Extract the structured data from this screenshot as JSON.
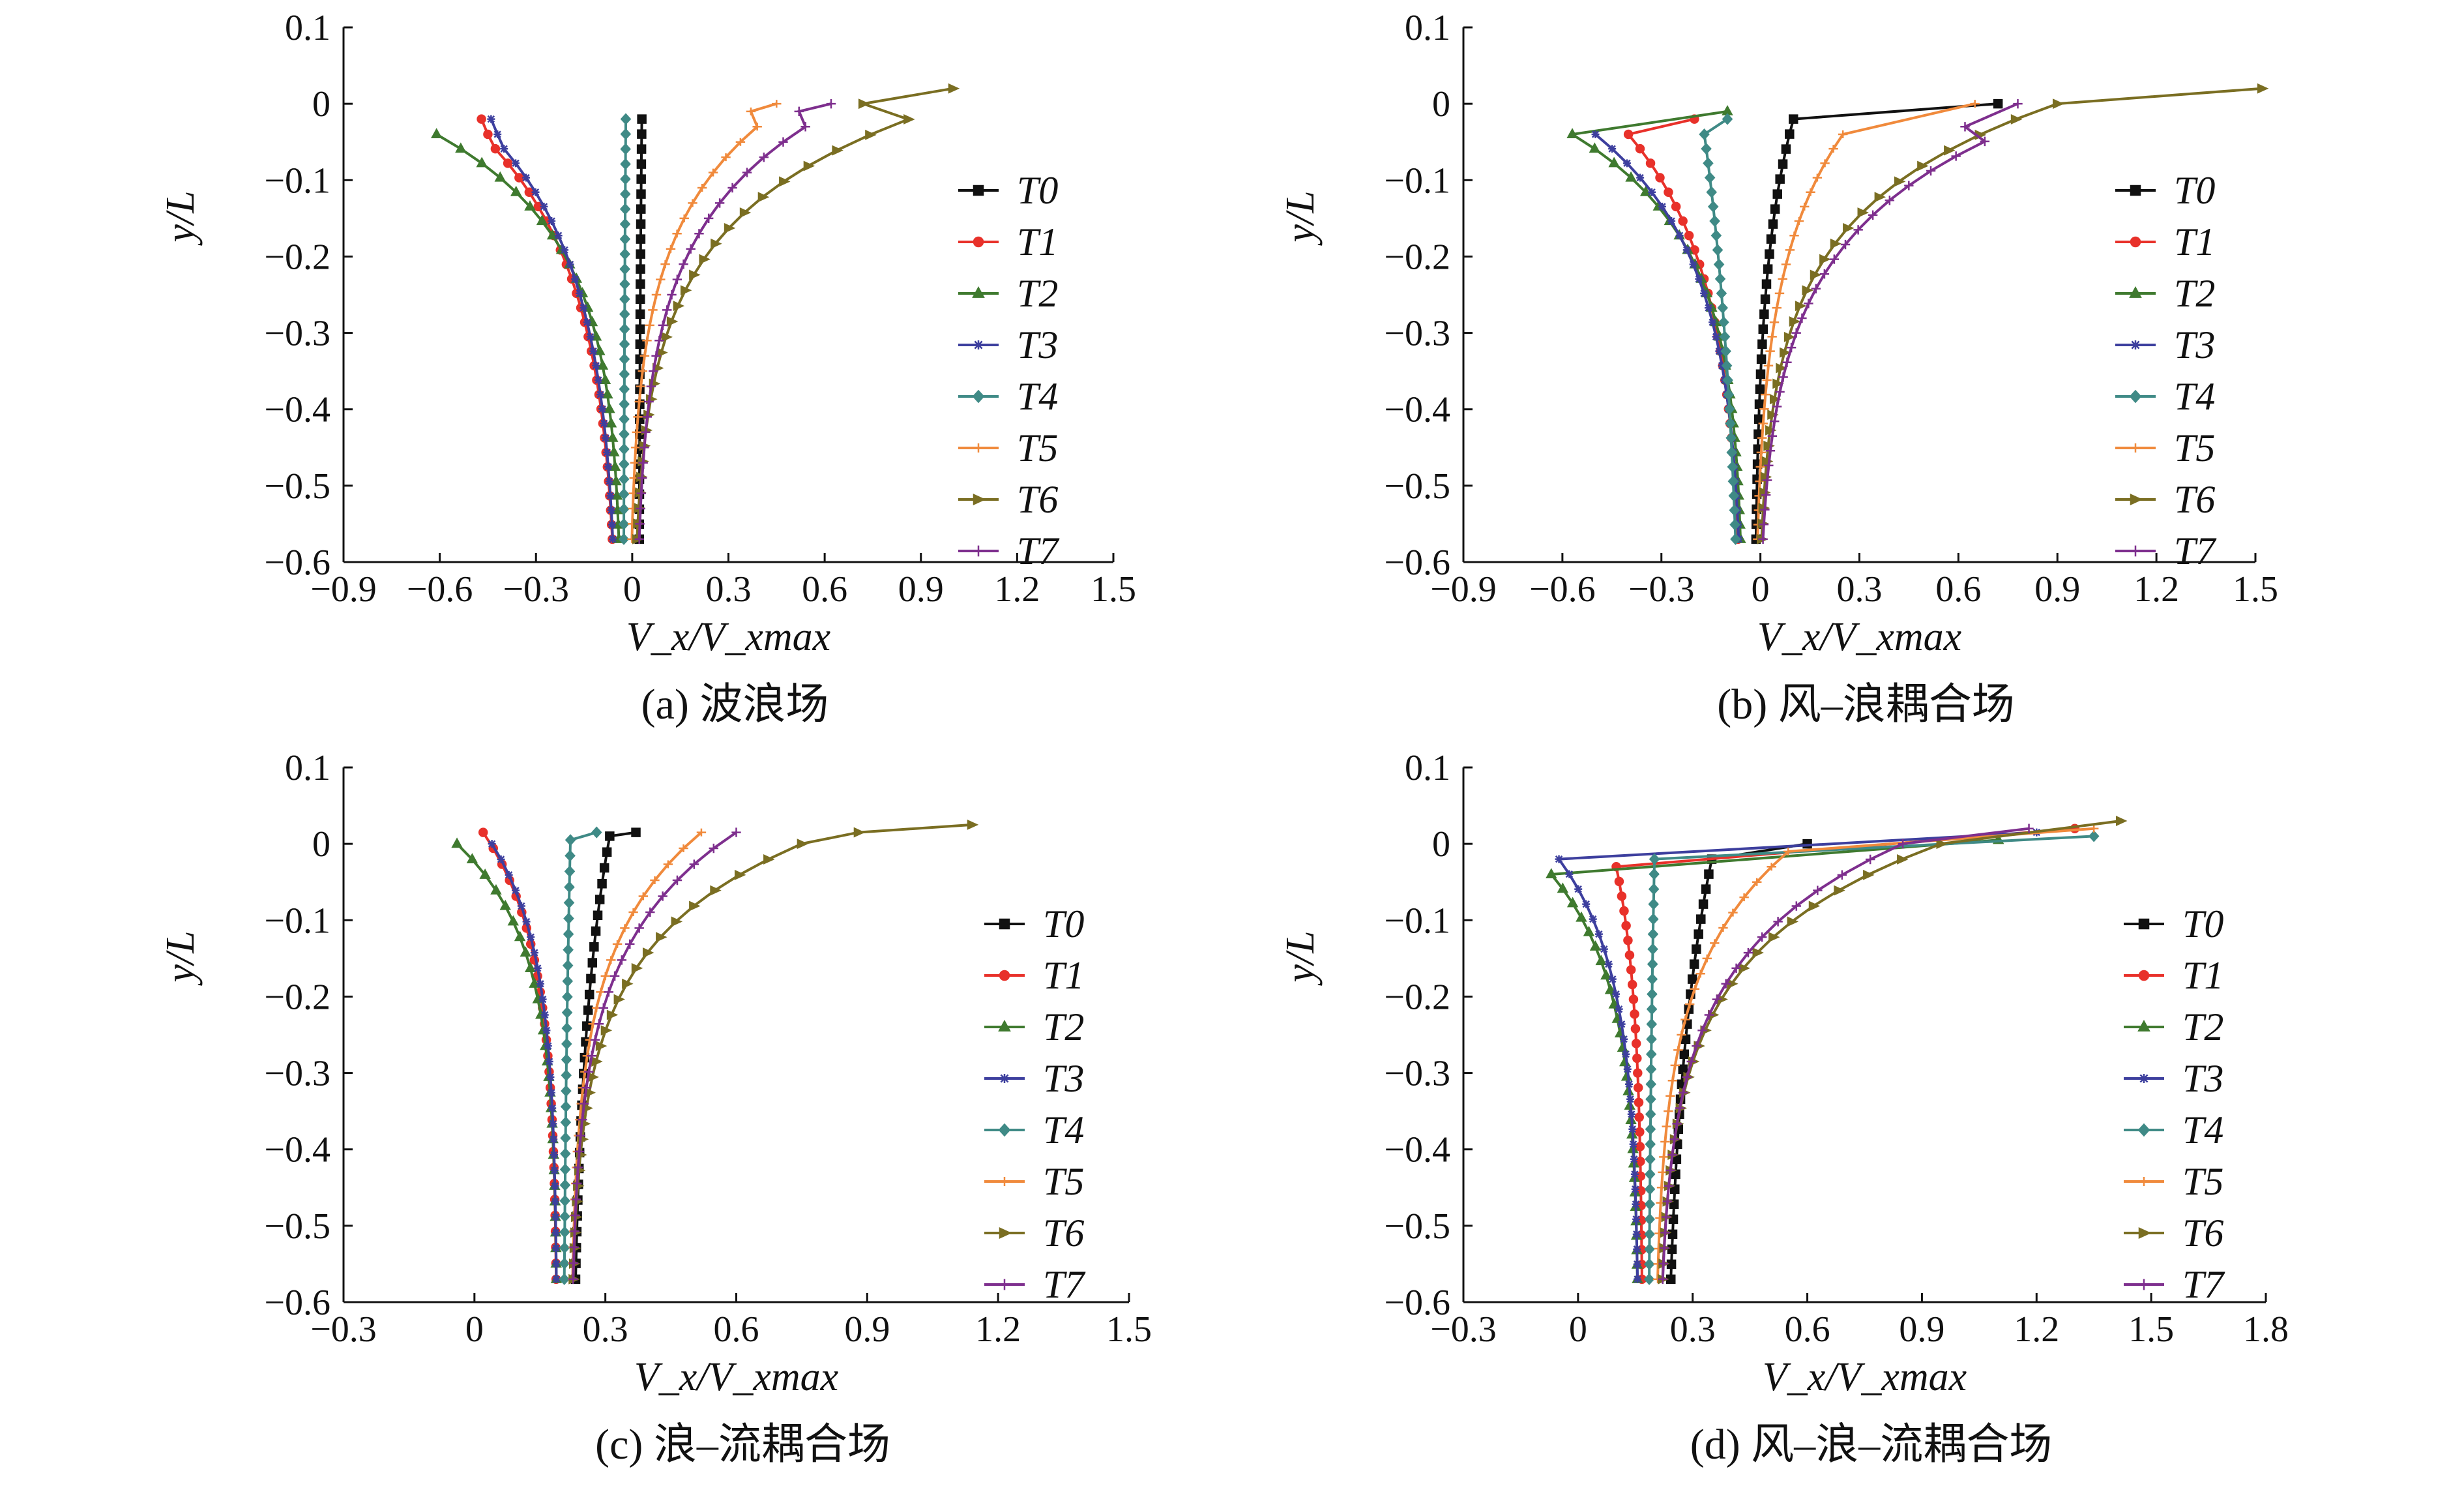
{
  "figure": {
    "series_names": [
      "T0",
      "T1",
      "T2",
      "T3",
      "T4",
      "T5",
      "T6",
      "T7"
    ],
    "series_colors": [
      "#111111",
      "#e8312a",
      "#3f7a2f",
      "#3d3f9e",
      "#3f8a86",
      "#f08a3c",
      "#7a6e22",
      "#7e2f8e"
    ],
    "series_markers": [
      "square",
      "circle",
      "triangle",
      "star",
      "diamond",
      "tick",
      "arrow",
      "plus"
    ]
  },
  "chart_data": [
    {
      "type": "line",
      "caption": "(a) 波浪场",
      "xlabel": "V_x/V_xmax",
      "ylabel": "y/L",
      "xlim": [
        -0.9,
        1.5
      ],
      "ylim": [
        -0.6,
        0.1
      ],
      "xticks": [
        -0.9,
        -0.6,
        -0.3,
        0,
        0.3,
        0.6,
        0.9,
        1.2,
        1.5
      ],
      "xtick_labels": [
        "−0.9",
        "−0.6",
        "−0.3",
        "0",
        "0.3",
        "0.6",
        "0.9",
        "1.2",
        "1.5"
      ],
      "yticks": [
        0.1,
        0,
        -0.1,
        -0.2,
        -0.3,
        -0.4,
        -0.5,
        -0.6
      ],
      "ytick_labels": [
        "0.1",
        "0",
        "−0.1",
        "−0.2",
        "−0.3",
        "−0.4",
        "−0.5",
        "−0.6"
      ],
      "legend": "right",
      "series": [
        {
          "name": "T0",
          "profile": {
            "surface": [
              0.03,
              -0.02
            ],
            "deep": 0.02,
            "k": 1.6
          }
        },
        {
          "name": "T1",
          "profile": {
            "surface": [
              -0.47,
              -0.02
            ],
            "deep": -0.04,
            "k": 3.2
          },
          "top": [
            [
              -0.47,
              -0.02
            ],
            [
              -0.45,
              -0.04
            ]
          ]
        },
        {
          "name": "T2",
          "profile": {
            "surface": [
              -0.61,
              -0.04
            ],
            "deep": -0.03,
            "k": 4.2
          }
        },
        {
          "name": "T3",
          "profile": {
            "surface": [
              -0.44,
              -0.02
            ],
            "deep": -0.04,
            "k": 3.2
          },
          "top": [
            [
              -0.44,
              -0.02
            ],
            [
              -0.42,
              -0.04
            ]
          ]
        },
        {
          "name": "T4",
          "profile": {
            "surface": [
              -0.02,
              -0.02
            ],
            "deep": -0.03,
            "k": 1.0
          }
        },
        {
          "name": "T5",
          "profile": {
            "surface": [
              0.45,
              0.0
            ],
            "deep": -0.01,
            "k": 4.0
          },
          "top": [
            [
              0.45,
              0.0
            ],
            [
              0.37,
              -0.01
            ]
          ]
        },
        {
          "name": "T6",
          "profile": {
            "surface": [
              1.0,
              0.02
            ],
            "deep": 0.0,
            "k": 4.2
          },
          "top": [
            [
              1.0,
              0.02
            ],
            [
              0.72,
              0.0
            ]
          ]
        },
        {
          "name": "T7",
          "profile": {
            "surface": [
              0.62,
              0.0
            ],
            "deep": 0.01,
            "k": 4.0
          },
          "top": [
            [
              0.62,
              0.0
            ],
            [
              0.52,
              -0.01
            ]
          ]
        }
      ]
    },
    {
      "type": "line",
      "caption": "(b) 风–浪耦合场",
      "xlabel": "V_x/V_xmax",
      "ylabel": "y/L",
      "xlim": [
        -0.9,
        1.5
      ],
      "ylim": [
        -0.6,
        0.1
      ],
      "xticks": [
        -0.9,
        -0.6,
        -0.3,
        0,
        0.3,
        0.6,
        0.9,
        1.2,
        1.5
      ],
      "xtick_labels": [
        "−0.9",
        "−0.6",
        "−0.3",
        "0",
        "0.3",
        "0.6",
        "0.9",
        "1.2",
        "1.5"
      ],
      "yticks": [
        0.1,
        0,
        -0.1,
        -0.2,
        -0.3,
        -0.4,
        -0.5,
        -0.6
      ],
      "ytick_labels": [
        "0.1",
        "0",
        "−0.1",
        "−0.2",
        "−0.3",
        "−0.4",
        "−0.5",
        "−0.6"
      ],
      "legend": "right",
      "series": [
        {
          "name": "T0",
          "profile": {
            "surface": [
              0.1,
              -0.02
            ],
            "deep": -0.02,
            "k": 3.0
          },
          "top": [
            [
              0.72,
              0.0
            ],
            [
              0.1,
              -0.02
            ]
          ]
        },
        {
          "name": "T1",
          "profile": {
            "surface": [
              -0.4,
              -0.04
            ],
            "deep": -0.05,
            "k": 3.2
          },
          "top": [
            [
              -0.2,
              -0.02
            ],
            [
              -0.4,
              -0.04
            ]
          ]
        },
        {
          "name": "T2",
          "profile": {
            "surface": [
              -0.57,
              -0.04
            ],
            "deep": -0.05,
            "k": 4.2
          },
          "top": [
            [
              -0.1,
              -0.01
            ],
            [
              -0.57,
              -0.04
            ]
          ]
        },
        {
          "name": "T3",
          "profile": {
            "surface": [
              -0.5,
              -0.04
            ],
            "deep": -0.05,
            "k": 3.6
          }
        },
        {
          "name": "T4",
          "profile": {
            "surface": [
              -0.17,
              -0.04
            ],
            "deep": -0.04,
            "k": 1.4
          },
          "top": [
            [
              -0.1,
              -0.02
            ],
            [
              -0.17,
              -0.04
            ]
          ]
        },
        {
          "name": "T5",
          "profile": {
            "surface": [
              0.25,
              -0.04
            ],
            "deep": -0.02,
            "k": 3.4
          },
          "top": [
            [
              0.65,
              0.0
            ],
            [
              0.25,
              -0.04
            ]
          ]
        },
        {
          "name": "T6",
          "profile": {
            "surface": [
              0.9,
              0.0
            ],
            "deep": -0.01,
            "k": 4.2
          },
          "top": [
            [
              1.52,
              0.02
            ],
            [
              0.9,
              0.0
            ]
          ]
        },
        {
          "name": "T7",
          "profile": {
            "surface": [
              0.78,
              0.0
            ],
            "deep": -0.01,
            "k": 4.0
          },
          "top": [
            [
              0.78,
              0.0
            ],
            [
              0.62,
              -0.03
            ]
          ]
        }
      ]
    },
    {
      "type": "line",
      "caption": "(c) 浪–流耦合场",
      "xlabel": "V_x/V_xmax",
      "ylabel": "y/L",
      "xlim": [
        -0.3,
        1.5
      ],
      "ylim": [
        -0.6,
        0.1
      ],
      "xticks": [
        -0.3,
        0,
        0.3,
        0.6,
        0.9,
        1.2,
        1.5
      ],
      "xtick_labels": [
        "−0.3",
        "0",
        "0.3",
        "0.6",
        "0.9",
        "1.2",
        "1.5"
      ],
      "yticks": [
        0.1,
        0,
        -0.1,
        -0.2,
        -0.3,
        -0.4,
        -0.5,
        -0.6
      ],
      "ytick_labels": [
        "0.1",
        "0",
        "−0.1",
        "−0.2",
        "−0.3",
        "−0.4",
        "−0.5",
        "−0.6"
      ],
      "legend": "right",
      "series": [
        {
          "name": "T0",
          "profile": {
            "surface": [
              0.31,
              0.01
            ],
            "deep": 0.22,
            "k": 2.0
          },
          "top": [
            [
              0.37,
              0.015
            ],
            [
              0.31,
              0.01
            ]
          ]
        },
        {
          "name": "T1",
          "profile": {
            "surface": [
              0.02,
              0.015
            ],
            "deep": 0.19,
            "k": 4.0
          }
        },
        {
          "name": "T2",
          "profile": {
            "surface": [
              -0.04,
              0.0
            ],
            "deep": 0.19,
            "k": 4.6
          }
        },
        {
          "name": "T3",
          "profile": {
            "surface": [
              0.04,
              0.0
            ],
            "deep": 0.19,
            "k": 4.2
          }
        },
        {
          "name": "T4",
          "profile": {
            "surface": [
              0.22,
              0.005
            ],
            "deep": 0.2,
            "k": 1.2
          },
          "top": [
            [
              0.28,
              0.015
            ],
            [
              0.22,
              0.005
            ]
          ]
        },
        {
          "name": "T5",
          "profile": {
            "surface": [
              0.52,
              0.015
            ],
            "deep": 0.22,
            "k": 4.0
          }
        },
        {
          "name": "T6",
          "profile": {
            "surface": [
              0.75,
              0.0
            ],
            "deep": 0.22,
            "k": 4.4
          },
          "top": [
            [
              1.14,
              0.025
            ],
            [
              0.88,
              0.015
            ],
            [
              0.75,
              0.0
            ]
          ]
        },
        {
          "name": "T7",
          "profile": {
            "surface": [
              0.6,
              0.015
            ],
            "deep": 0.22,
            "k": 4.0
          }
        }
      ]
    },
    {
      "type": "line",
      "caption": "(d) 风–浪–流耦合场",
      "xlabel": "V_x/V_xmax",
      "ylabel": "y/L",
      "xlim": [
        -0.3,
        1.8
      ],
      "ylim": [
        -0.6,
        0.1
      ],
      "xticks": [
        -0.3,
        0,
        0.3,
        0.6,
        0.9,
        1.2,
        1.5,
        1.8
      ],
      "xtick_labels": [
        "−0.3",
        "0",
        "0.3",
        "0.6",
        "0.9",
        "1.2",
        "1.5",
        "1.8"
      ],
      "yticks": [
        0.1,
        0,
        -0.1,
        -0.2,
        -0.3,
        -0.4,
        -0.5,
        -0.6
      ],
      "ytick_labels": [
        "0.1",
        "0",
        "−0.1",
        "−0.2",
        "−0.3",
        "−0.4",
        "−0.5",
        "−0.6"
      ],
      "legend": "right",
      "series": [
        {
          "name": "T0",
          "profile": {
            "surface": [
              0.35,
              -0.02
            ],
            "deep": 0.22,
            "k": 1.8
          },
          "top": [
            [
              0.6,
              0.0
            ],
            [
              0.35,
              -0.02
            ]
          ]
        },
        {
          "name": "T1",
          "profile": {
            "surface": [
              0.1,
              -0.03
            ],
            "deep": 0.17,
            "k": 3.4
          },
          "top": [
            [
              1.3,
              0.02
            ],
            [
              0.1,
              -0.03
            ]
          ]
        },
        {
          "name": "T2",
          "profile": {
            "surface": [
              -0.07,
              -0.04
            ],
            "deep": 0.16,
            "k": 4.2
          },
          "top": [
            [
              1.1,
              0.005
            ],
            [
              -0.07,
              -0.04
            ]
          ]
        },
        {
          "name": "T3",
          "profile": {
            "surface": [
              -0.05,
              -0.02
            ],
            "deep": 0.16,
            "k": 4.0
          },
          "top": [
            [
              1.2,
              0.015
            ],
            [
              -0.05,
              -0.02
            ]
          ]
        },
        {
          "name": "T4",
          "profile": {
            "surface": [
              0.2,
              -0.02
            ],
            "deep": 0.18,
            "k": 1.2
          },
          "top": [
            [
              1.35,
              0.01
            ],
            [
              0.2,
              -0.02
            ]
          ]
        },
        {
          "name": "T5",
          "profile": {
            "surface": [
              0.55,
              -0.01
            ],
            "deep": 0.2,
            "k": 3.8
          },
          "top": [
            [
              1.35,
              0.02
            ],
            [
              0.55,
              -0.01
            ]
          ]
        },
        {
          "name": "T6",
          "profile": {
            "surface": [
              0.95,
              0.0
            ],
            "deep": 0.21,
            "k": 4.2
          },
          "top": [
            [
              1.42,
              0.03
            ],
            [
              0.95,
              0.0
            ]
          ]
        },
        {
          "name": "T7",
          "profile": {
            "surface": [
              0.85,
              0.0
            ],
            "deep": 0.21,
            "k": 4.0
          },
          "top": [
            [
              1.18,
              0.02
            ],
            [
              0.85,
              0.0
            ]
          ]
        }
      ]
    }
  ]
}
